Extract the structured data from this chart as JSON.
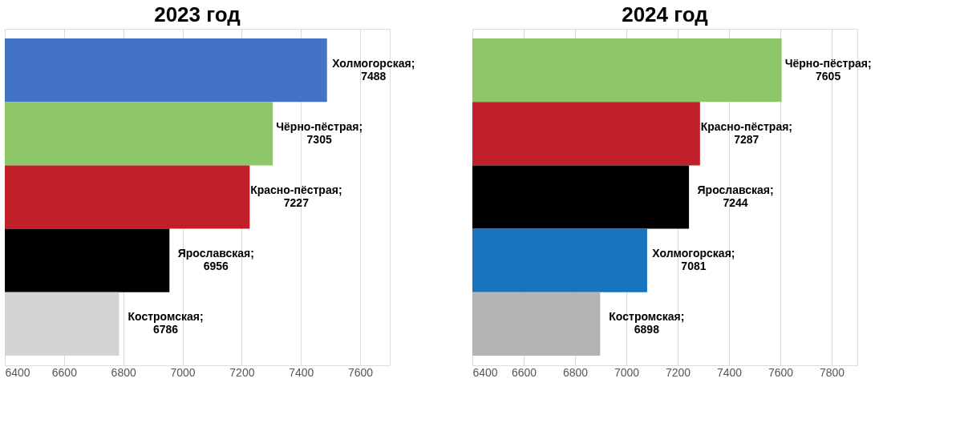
{
  "chart_data": [
    {
      "type": "bar",
      "title": "2023 год",
      "orientation": "horizontal",
      "categories": [
        null,
        null,
        null,
        null,
        null
      ],
      "values": [
        7488,
        7305,
        7227,
        6956,
        6786
      ],
      "colors": [
        "#4472c4",
        "#8dc767",
        "#c0202a",
        "#000000",
        "#d4d4d4"
      ],
      "value_labels": [
        "Холмогорская;\n7488",
        "Чёрно-пёстрая;\n7305",
        "Красно-пёстрая;\n7227",
        "Ярославская;\n6956",
        "Костромская;\n6786"
      ],
      "xlim": [
        6400,
        7700
      ],
      "xticks": [
        6400,
        6600,
        6800,
        7000,
        7200,
        7400,
        7600
      ],
      "grid": "x",
      "tick_labels": "x"
    },
    {
      "type": "bar",
      "title": "2024 год",
      "orientation": "horizontal",
      "categories": [
        null,
        null,
        null,
        null,
        null
      ],
      "values": [
        7605,
        7287,
        7244,
        7081,
        6898
      ],
      "colors": [
        "#8dc767",
        "#c0202a",
        "#000000",
        "#1874be",
        "#b3b3b3"
      ],
      "value_labels": [
        "Чёрно-пёстрая;\n7605",
        "Красно-пёстрая;\n7287",
        "Ярославская;\n7244",
        "Холмогорская;\n7081",
        "Костромская;\n6898"
      ],
      "xlim": [
        6400,
        7900
      ],
      "xticks": [
        6400,
        6600,
        6800,
        7000,
        7200,
        7400,
        7600,
        7800
      ],
      "grid": "x",
      "tick_labels": "x"
    }
  ]
}
